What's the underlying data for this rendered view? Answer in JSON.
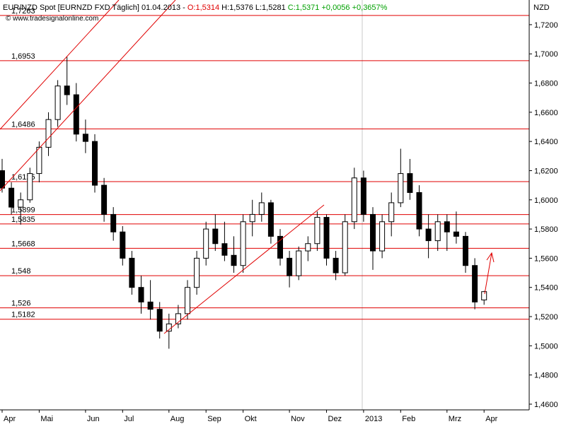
{
  "chart_data": {
    "type": "candlestick",
    "title": "EUR/NZD Spot [EURNZD FXD  Täglich] 01.04.2013 -",
    "quote_open": "O:1,5314",
    "quote_range": "H:1,5376 L:1,5281",
    "quote_change": "C:1,5371 +0,0056 +0,3657%",
    "watermark": "© www.tradesignalonline.com",
    "y_axis_label": "NZD",
    "up_color": "#ffffff",
    "down_color": "#000000",
    "level_color": "#e00000",
    "categories": [
      "Apr",
      null,
      null,
      null,
      "Mai",
      null,
      null,
      null,
      null,
      "Jun",
      null,
      null,
      null,
      "Jul",
      null,
      null,
      null,
      null,
      "Aug",
      null,
      null,
      null,
      "Sep",
      null,
      null,
      null,
      "Okt",
      null,
      null,
      null,
      null,
      "Nov",
      null,
      null,
      null,
      "Dez",
      null,
      null,
      null,
      "2013",
      null,
      null,
      null,
      "Feb",
      null,
      null,
      null,
      null,
      "Mrz",
      null,
      null,
      null,
      "Apr"
    ],
    "open": [
      1.62,
      1.608,
      1.595,
      1.6,
      1.618,
      1.636,
      1.655,
      1.678,
      1.672,
      1.645,
      1.64,
      1.61,
      1.59,
      1.578,
      1.56,
      1.54,
      1.53,
      1.525,
      1.51,
      1.515,
      1.522,
      1.54,
      1.56,
      1.58,
      1.57,
      1.562,
      1.555,
      1.585,
      1.59,
      1.598,
      1.575,
      1.56,
      1.548,
      1.565,
      1.57,
      1.588,
      1.56,
      1.55,
      1.585,
      1.615,
      1.59,
      1.565,
      1.585,
      1.598,
      1.618,
      1.605,
      1.58,
      1.572,
      1.585,
      1.578,
      1.575,
      1.555,
      1.5314
    ],
    "high": [
      1.628,
      1.612,
      1.605,
      1.622,
      1.64,
      1.66,
      1.682,
      1.698,
      1.68,
      1.655,
      1.645,
      1.615,
      1.595,
      1.582,
      1.565,
      1.548,
      1.545,
      1.53,
      1.522,
      1.528,
      1.545,
      1.565,
      1.585,
      1.59,
      1.585,
      1.575,
      1.59,
      1.6,
      1.605,
      1.6,
      1.58,
      1.565,
      1.568,
      1.575,
      1.592,
      1.59,
      1.565,
      1.59,
      1.622,
      1.62,
      1.595,
      1.59,
      1.605,
      1.635,
      1.628,
      1.61,
      1.59,
      1.59,
      1.59,
      1.592,
      1.578,
      1.56,
      1.5376
    ],
    "low": [
      1.605,
      1.59,
      1.583,
      1.598,
      1.612,
      1.63,
      1.65,
      1.665,
      1.64,
      1.632,
      1.605,
      1.585,
      1.572,
      1.555,
      1.535,
      1.522,
      1.518,
      1.505,
      1.498,
      1.512,
      1.518,
      1.535,
      1.555,
      1.565,
      1.558,
      1.55,
      1.55,
      1.575,
      1.585,
      1.57,
      1.555,
      1.54,
      1.545,
      1.558,
      1.565,
      1.555,
      1.545,
      1.548,
      1.58,
      1.585,
      1.552,
      1.56,
      1.575,
      1.595,
      1.6,
      1.575,
      1.56,
      1.565,
      1.565,
      1.57,
      1.55,
      1.525,
      1.5281
    ],
    "close": [
      1.608,
      1.595,
      1.6,
      1.618,
      1.636,
      1.655,
      1.678,
      1.672,
      1.645,
      1.64,
      1.61,
      1.59,
      1.578,
      1.56,
      1.54,
      1.53,
      1.525,
      1.51,
      1.515,
      1.522,
      1.54,
      1.56,
      1.58,
      1.57,
      1.562,
      1.555,
      1.585,
      1.59,
      1.598,
      1.575,
      1.56,
      1.548,
      1.565,
      1.57,
      1.588,
      1.56,
      1.55,
      1.585,
      1.615,
      1.59,
      1.565,
      1.585,
      1.598,
      1.618,
      1.605,
      1.58,
      1.572,
      1.585,
      1.578,
      1.575,
      1.555,
      1.53,
      1.5371
    ],
    "levels": [
      {
        "value": 1.7263,
        "label": "1,7263"
      },
      {
        "value": 1.6953,
        "label": "1,6953"
      },
      {
        "value": 1.6486,
        "label": "1,6486"
      },
      {
        "value": 1.6125,
        "label": "1,6125"
      },
      {
        "value": 1.5899,
        "label": "1,5899"
      },
      {
        "value": 1.5835,
        "label": "1,5835"
      },
      {
        "value": 1.5668,
        "label": "1,5668"
      },
      {
        "value": 1.548,
        "label": "1,548"
      },
      {
        "value": 1.526,
        "label": "1,526"
      },
      {
        "value": 1.5182,
        "label": "1,5182"
      }
    ],
    "ylim": [
      1.4561,
      1.7369
    ],
    "yticks": [
      {
        "value": 1.46,
        "label": "1,4600"
      },
      {
        "value": 1.48,
        "label": "1,4800"
      },
      {
        "value": 1.5,
        "label": "1,5000"
      },
      {
        "value": 1.52,
        "label": "1,5200"
      },
      {
        "value": 1.54,
        "label": "1,5400"
      },
      {
        "value": 1.56,
        "label": "1,5600"
      },
      {
        "value": 1.58,
        "label": "1,5800"
      },
      {
        "value": 1.6,
        "label": "1,6000"
      },
      {
        "value": 1.62,
        "label": "1,6200"
      },
      {
        "value": 1.64,
        "label": "1,6400"
      },
      {
        "value": 1.66,
        "label": "1,6600"
      },
      {
        "value": 1.68,
        "label": "1,6800"
      },
      {
        "value": 1.7,
        "label": "1,7000"
      },
      {
        "value": 1.72,
        "label": "1,7200"
      }
    ]
  }
}
